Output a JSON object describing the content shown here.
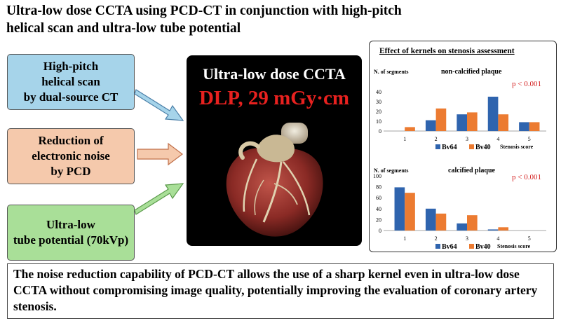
{
  "title": "Ultra-low dose CCTA using PCD-CT in conjunction with high-pitch\n helical scan and ultra-low tube potential",
  "boxes": [
    {
      "label": "High-pitch\nhelical scan\nby dual-source CT",
      "color": "#a6d4ea"
    },
    {
      "label": "Reduction of\nelectronic noise\nby PCD",
      "color": "#f5c9ac"
    },
    {
      "label": "Ultra-low\ntube potential (70kVp)",
      "color": "#a9df98"
    }
  ],
  "ct_image": {
    "title": "Ultra-low dose CCTA",
    "dlp": "DLP, 29 mGy·cm"
  },
  "chart_panel_title": "Effect of kernels on stenosis assessment",
  "chart_data": [
    {
      "type": "bar",
      "title": "non-calcified plaque",
      "ylabel": "N. of segments",
      "xlabel": "Stenosis score",
      "categories": [
        "1",
        "2",
        "3",
        "4",
        "5"
      ],
      "ylim": [
        0,
        40
      ],
      "yticks": [
        0,
        10,
        20,
        30,
        40
      ],
      "series": [
        {
          "name": "Bv64",
          "color": "#2f64ae",
          "values": [
            0,
            11,
            17,
            35,
            9
          ]
        },
        {
          "name": "Bv40",
          "color": "#ec7b31",
          "values": [
            4,
            23,
            19,
            17,
            9
          ]
        }
      ],
      "annotation": "p < 0.001"
    },
    {
      "type": "bar",
      "title": "calcified plaque",
      "ylabel": "N. of segments",
      "xlabel": "Stenosis score",
      "categories": [
        "1",
        "2",
        "3",
        "4",
        "5"
      ],
      "ylim": [
        0,
        100
      ],
      "yticks": [
        0,
        20,
        40,
        60,
        80,
        100
      ],
      "series": [
        {
          "name": "Bv64",
          "color": "#2f64ae",
          "values": [
            79,
            40,
            13,
            2,
            0
          ]
        },
        {
          "name": "Bv40",
          "color": "#ec7b31",
          "values": [
            69,
            31,
            28,
            6,
            0
          ]
        }
      ],
      "annotation": "p < 0.001"
    }
  ],
  "summary": "The noise reduction capability of PCD-CT allows the use of a sharp kernel even in ultra-low dose CCTA without compromising image quality, potentially improving the evaluation of coronary artery stenosis."
}
